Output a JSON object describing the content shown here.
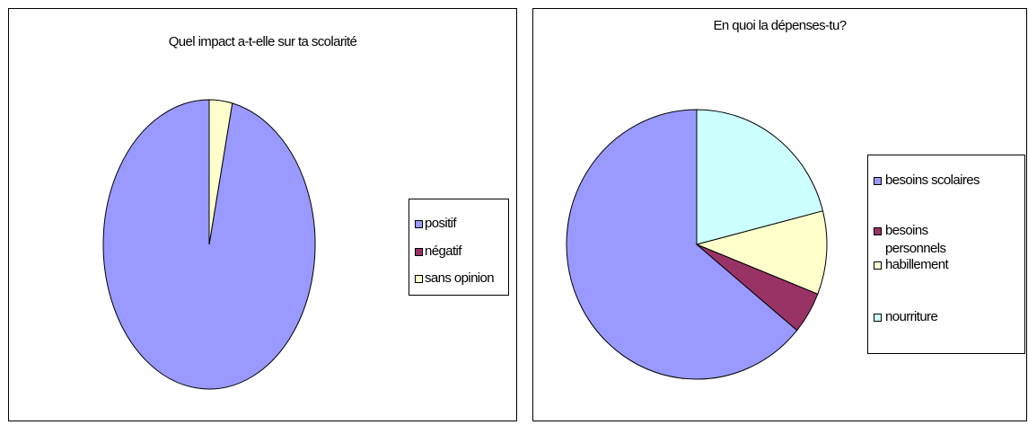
{
  "chart_data": [
    {
      "type": "pie",
      "title": "Quel impact a-t-elle sur ta scolarité",
      "categories": [
        "positif",
        "négatif",
        "sans opinion"
      ],
      "values": [
        96.5,
        0,
        3.5
      ],
      "colors": [
        "#9999ff",
        "#993366",
        "#ffffcc"
      ],
      "legend": "right"
    },
    {
      "type": "pie",
      "title": "En quoi la dépenses-tu?",
      "categories": [
        "besoins scolaires",
        "besoins personnels",
        "habillement",
        "nourriture"
      ],
      "legend_lines": [
        [
          "besoins scolaires"
        ],
        [
          "besoins",
          "personnels"
        ],
        [
          "habillement"
        ],
        [
          "nourriture"
        ]
      ],
      "values": [
        64,
        5,
        10,
        21
      ],
      "colors": [
        "#9999ff",
        "#993366",
        "#ffffcc",
        "#ccffff"
      ],
      "legend": "right"
    }
  ]
}
